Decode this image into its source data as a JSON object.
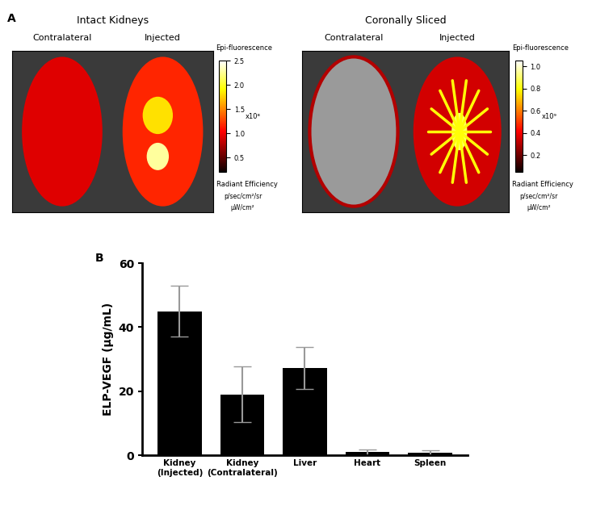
{
  "panel_a": {
    "label": "A",
    "images": [
      {
        "title": "Intact Kidneys",
        "left": "Contralateral",
        "right": "Injected",
        "style": "intact",
        "colorbar": {
          "title": "Epi-fluorescence",
          "multiplier": "x10⁸",
          "name": "Radiant Efficiency",
          "unit_top": "p/sec/cm²/sr",
          "unit_bottom": "µW/cm²",
          "range": [
            0.2,
            2.5
          ],
          "ticks": [
            {
              "value": 0.5,
              "label": "0.5"
            },
            {
              "value": 1.0,
              "label": "1.0"
            },
            {
              "value": 1.5,
              "label": "1.5"
            },
            {
              "value": 2.0,
              "label": "2.0"
            },
            {
              "value": 2.5,
              "label": "2.5"
            }
          ]
        }
      },
      {
        "title": "Coronally Sliced",
        "left": "Contralateral",
        "right": "Injected",
        "style": "sliced",
        "colorbar": {
          "title": "Epi-fluorescence",
          "multiplier": "x10⁹",
          "name": "Radiant Efficiency",
          "unit_top": "p/sec/cm²/sr",
          "unit_bottom": "µW/cm²",
          "range": [
            0.05,
            1.05
          ],
          "ticks": [
            {
              "value": 0.2,
              "label": "0.2"
            },
            {
              "value": 0.4,
              "label": "0.4"
            },
            {
              "value": 0.6,
              "label": "0.6"
            },
            {
              "value": 0.8,
              "label": "0.8"
            },
            {
              "value": 1.0,
              "label": "1.0"
            }
          ]
        }
      }
    ]
  },
  "chart_data": {
    "type": "bar",
    "panel_label": "B",
    "y_label": "ELP-VEGF (µg/mL)",
    "categories": [
      "Kidney\n(Injected)",
      "Kidney\n(Contralateral)",
      "Liver",
      "Heart",
      "Spleen"
    ],
    "values": [
      45,
      19,
      27.2,
      1.0,
      0.9
    ],
    "errors": [
      8,
      8.7,
      6.5,
      0.8,
      0.7
    ],
    "color": "#000000",
    "error_color": "#999999",
    "ylim": [
      0,
      60
    ],
    "yticks": [
      0,
      20,
      40,
      60
    ]
  }
}
